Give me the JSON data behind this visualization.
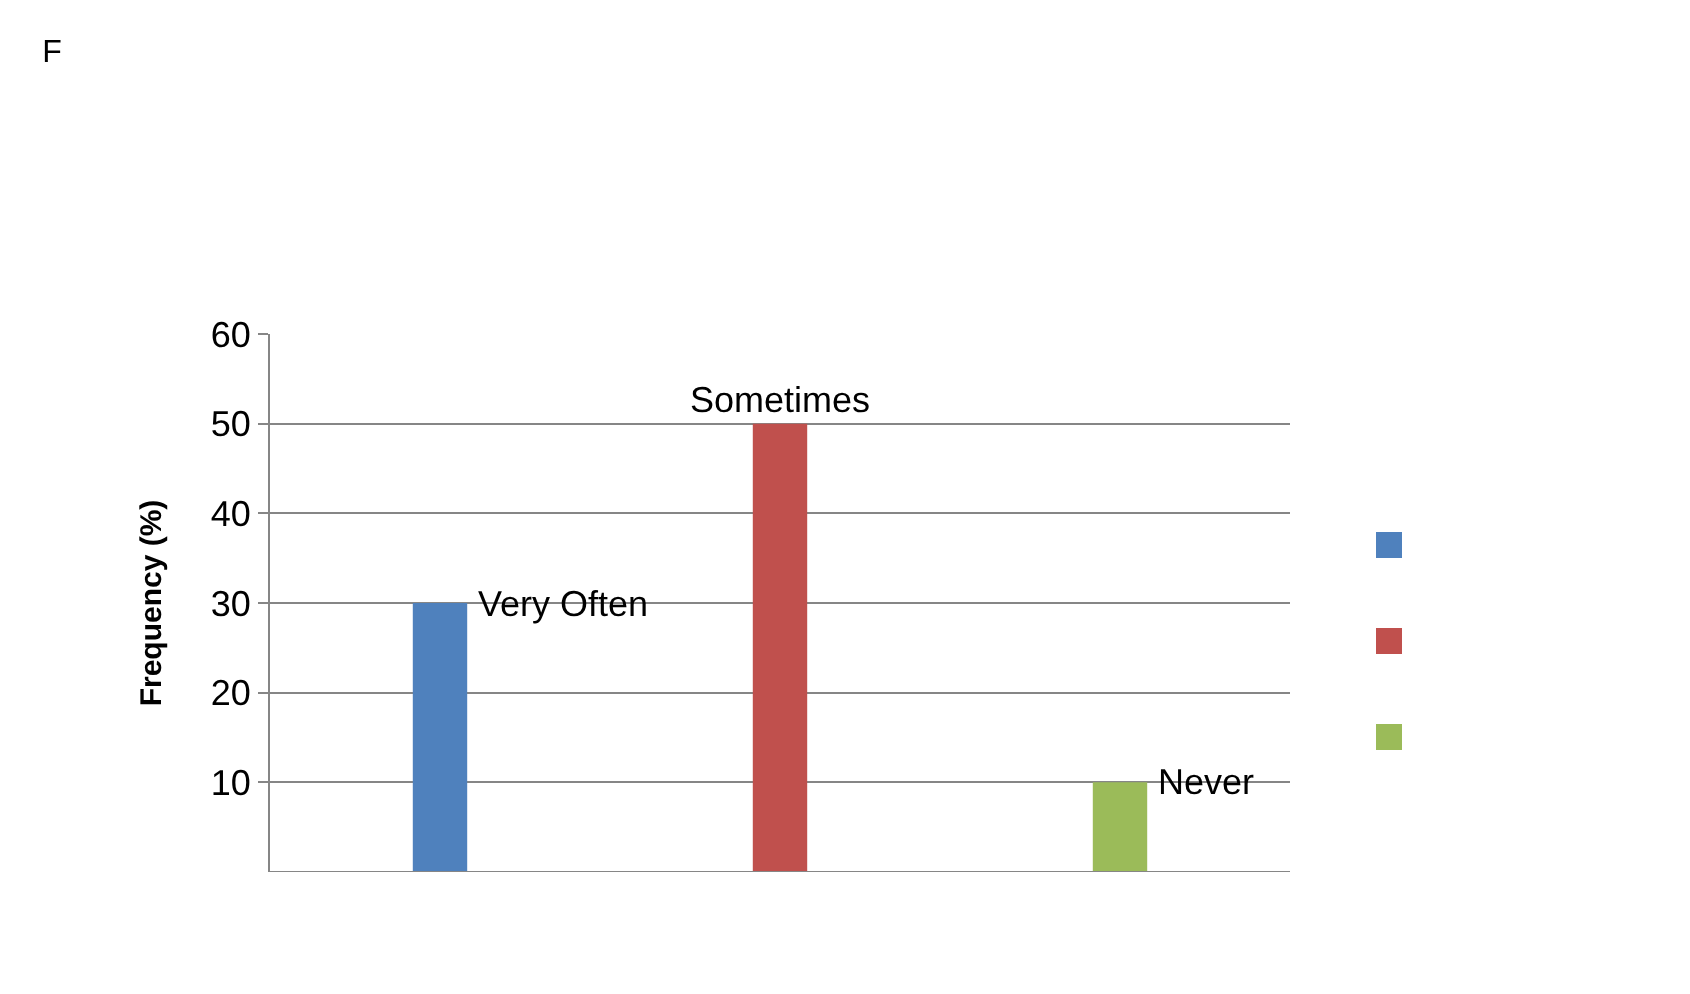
{
  "chart_data": {
    "type": "bar",
    "title": "F",
    "ylabel": "Frequency (%)",
    "categories": [
      null,
      null,
      null
    ],
    "series": [
      {
        "name": "Very Often",
        "color": "#4f81bd",
        "values": [
          30,
          null,
          null
        ]
      },
      {
        "name": "Sometimes",
        "color": "#c0504d",
        "values": [
          null,
          50,
          null
        ]
      },
      {
        "name": "Never",
        "color": "#9bbb59",
        "values": [
          null,
          null,
          10
        ]
      }
    ],
    "ylim": [
      0,
      60
    ],
    "yticks": [
      10,
      20,
      30,
      40,
      50,
      60
    ],
    "grid": "y"
  }
}
